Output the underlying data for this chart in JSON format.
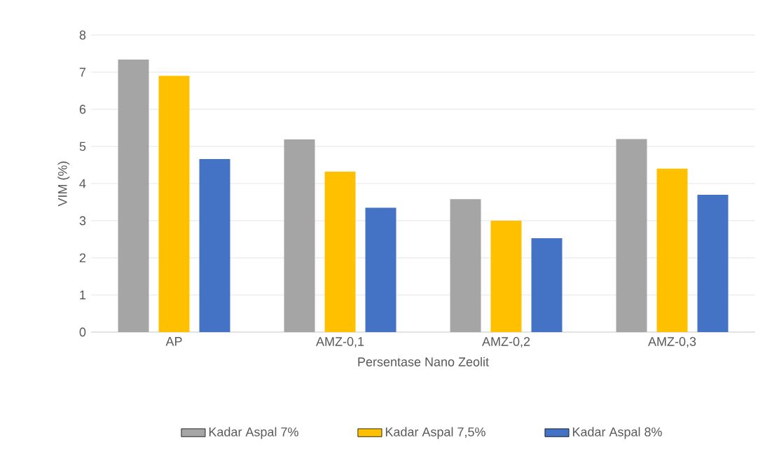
{
  "chart_data": {
    "type": "bar",
    "xlabel": "Persentase Nano Zeolit",
    "ylabel": "VIM (%)",
    "categories": [
      "AP",
      "AMZ-0,1",
      "AMZ-0,2",
      "AMZ-0,3"
    ],
    "series": [
      {
        "name": "Kadar Aspal 7%",
        "color": "#a5a5a5",
        "values": [
          7.34,
          5.19,
          3.58,
          5.2
        ]
      },
      {
        "name": "Kadar Aspal 7,5%",
        "color": "#ffc000",
        "values": [
          6.9,
          4.32,
          3.0,
          4.4
        ]
      },
      {
        "name": "Kadar Aspal 8%",
        "color": "#4472c4",
        "values": [
          4.66,
          3.35,
          2.53,
          3.7
        ]
      }
    ],
    "ylim": [
      0,
      8
    ],
    "yticks": [
      0,
      1,
      2,
      3,
      4,
      5,
      6,
      7,
      8
    ],
    "grid": "y",
    "legend": "bottom"
  }
}
